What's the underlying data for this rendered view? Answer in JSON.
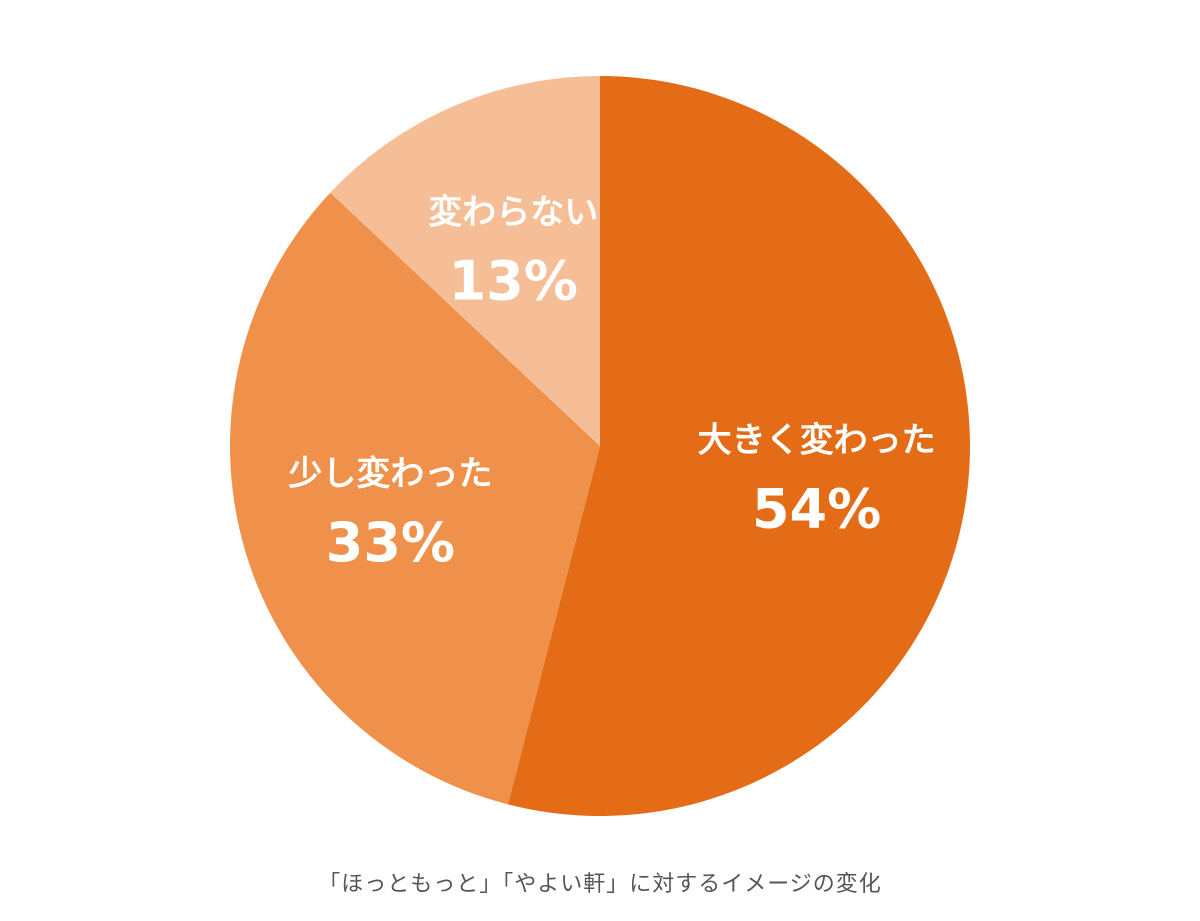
{
  "chart_data": {
    "type": "pie",
    "title": "「ほっともっと」「やよい軒」に対するイメージの変化",
    "start_angle_deg": 0,
    "direction": "clockwise",
    "slices": [
      {
        "label": "大きく変わった",
        "value": 54,
        "value_label": "54%",
        "color": "#E46C16"
      },
      {
        "label": "少し変わった",
        "value": 33,
        "value_label": "33%",
        "color": "#F0914B"
      },
      {
        "label": "変わらない",
        "value": 13,
        "value_label": "13%",
        "color": "#F6BE97"
      }
    ]
  }
}
